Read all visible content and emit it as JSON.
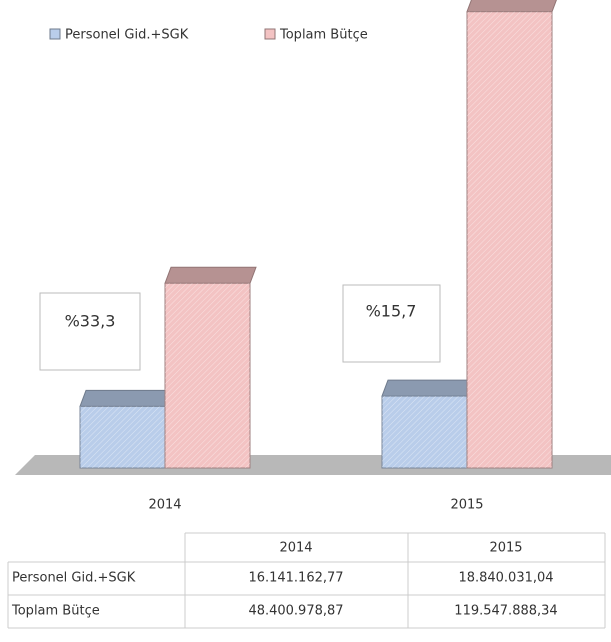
{
  "chart_data": {
    "type": "bar",
    "categories": [
      "2014",
      "2015"
    ],
    "series": [
      {
        "name": "Personel Gid.+SGK",
        "color": "#b9cdea",
        "values": [
          16141162.77,
          18840031.04
        ],
        "value_labels": [
          "16.141.162,77",
          "18.840.031,04"
        ]
      },
      {
        "name": "Toplam Bütçe",
        "color": "#f3c3c3",
        "values": [
          48400978.87,
          119547888.34
        ],
        "value_labels": [
          "48.400.978,87",
          "119.547.888,34"
        ]
      }
    ],
    "annotations": [
      "%33,3",
      "%15,7"
    ],
    "ylim": [
      0,
      120000000
    ],
    "legend": "top-left"
  }
}
